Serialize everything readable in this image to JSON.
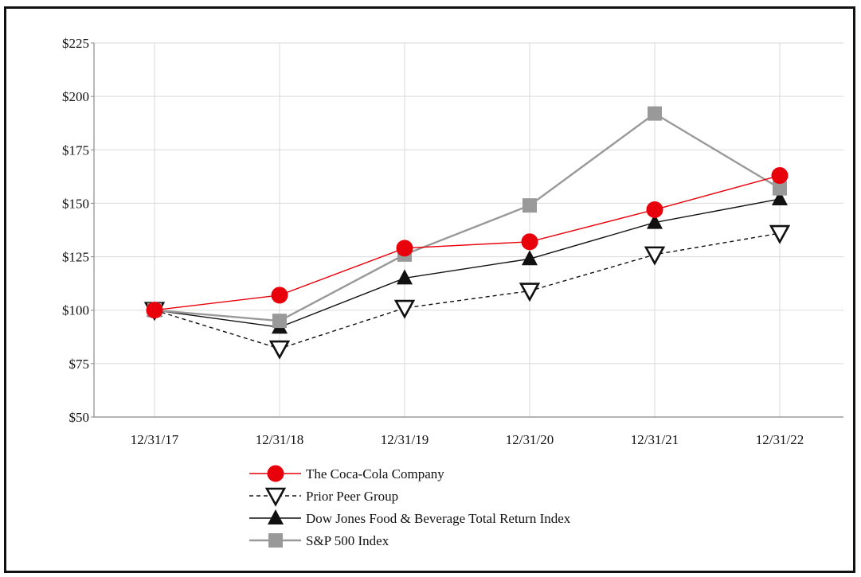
{
  "chart_data": {
    "type": "line",
    "title": "",
    "xlabel": "",
    "ylabel": "",
    "categories": [
      "12/31/17",
      "12/31/18",
      "12/31/19",
      "12/31/20",
      "12/31/21",
      "12/31/22"
    ],
    "ylim": [
      50,
      225
    ],
    "yticks": [
      50,
      75,
      100,
      125,
      150,
      175,
      200,
      225
    ],
    "ytick_labels": [
      "$50",
      "$75",
      "$100",
      "$125",
      "$150",
      "$175",
      "$200",
      "$225"
    ],
    "grid": true,
    "legend_position": "bottom",
    "series": [
      {
        "name": "The Coca-Cola Company",
        "values": [
          100,
          107,
          129,
          132,
          147,
          163
        ],
        "color": "#e8000b",
        "marker": "circle",
        "line_style": "solid"
      },
      {
        "name": "Prior Peer Group",
        "values": [
          100,
          82,
          101,
          109,
          126,
          136
        ],
        "color": "#111111",
        "marker": "triangle-down-open",
        "line_style": "dashed"
      },
      {
        "name": "Dow Jones Food & Beverage Total Return Index",
        "values": [
          100,
          92,
          115,
          124,
          141,
          152
        ],
        "color": "#111111",
        "marker": "triangle-up",
        "line_style": "solid"
      },
      {
        "name": "S&P 500 Index",
        "values": [
          100,
          95,
          126,
          149,
          192,
          157
        ],
        "color": "#999999",
        "marker": "square",
        "line_style": "solid"
      }
    ]
  }
}
